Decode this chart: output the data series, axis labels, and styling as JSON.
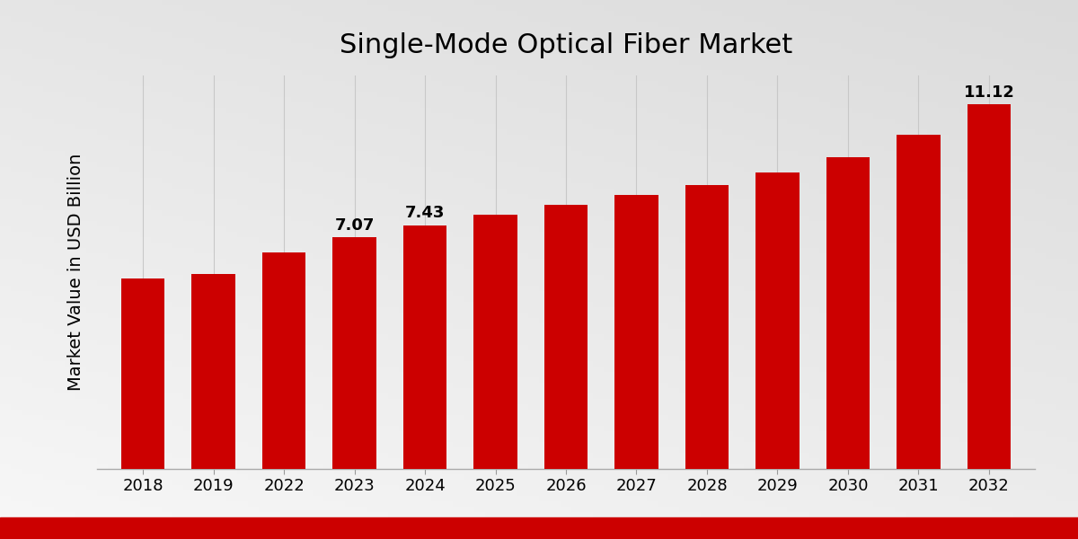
{
  "title": "Single-Mode Optical Fiber Market",
  "ylabel": "Market Value in USD Billion",
  "categories": [
    "2018",
    "2019",
    "2022",
    "2023",
    "2024",
    "2025",
    "2026",
    "2027",
    "2028",
    "2029",
    "2030",
    "2031",
    "2032"
  ],
  "values": [
    5.8,
    5.95,
    6.6,
    7.07,
    7.43,
    7.75,
    8.05,
    8.35,
    8.65,
    9.05,
    9.5,
    10.2,
    11.12
  ],
  "bar_color": "#cc0000",
  "bar_annotations": {
    "2023": "7.07",
    "2024": "7.43",
    "2032": "11.12"
  },
  "grid_color": "#c8c8c8",
  "title_fontsize": 22,
  "ylabel_fontsize": 14,
  "tick_fontsize": 13,
  "annotation_fontsize": 13,
  "ylim": [
    0,
    12.0
  ],
  "bar_width": 0.62,
  "bottom_bar_color": "#cc0000"
}
